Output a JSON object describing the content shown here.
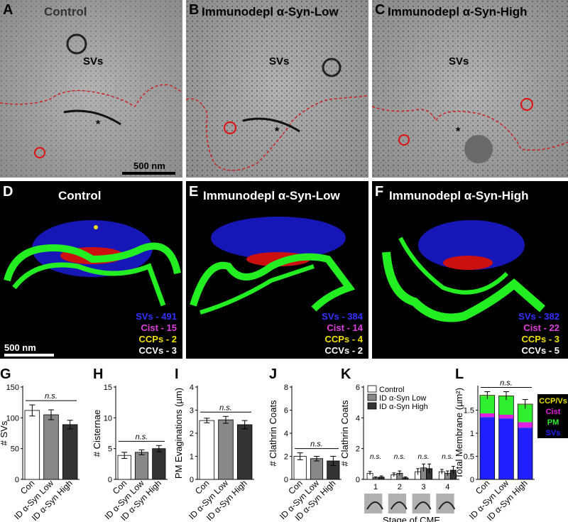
{
  "em_panels": [
    {
      "letter": "A",
      "title": "Control",
      "sv_label": "SVs",
      "scale": "500 nm"
    },
    {
      "letter": "B",
      "title": "Immunodepl α-Syn-Low",
      "sv_label": "SVs"
    },
    {
      "letter": "C",
      "title": "Immunodepl α-Syn-High",
      "sv_label": "SVs"
    }
  ],
  "recon_panels": [
    {
      "letter": "D",
      "title": "Control",
      "scale": "500 nm",
      "counts": [
        {
          "text": "SVs - 491",
          "color": "#3232ff"
        },
        {
          "text": "Cist - 15",
          "color": "#e040e0"
        },
        {
          "text": "CCPs - 2",
          "color": "#f0e000"
        },
        {
          "text": "CCVs - 3",
          "color": "#ffffff"
        }
      ]
    },
    {
      "letter": "E",
      "title": "Immunodepl α-Syn-Low",
      "counts": [
        {
          "text": "SVs - 384",
          "color": "#3232ff"
        },
        {
          "text": "Cist - 14",
          "color": "#e040e0"
        },
        {
          "text": "CCPs - 4",
          "color": "#f0e000"
        },
        {
          "text": "CCVs - 2",
          "color": "#ffffff"
        }
      ]
    },
    {
      "letter": "F",
      "title": "Immunodepl α-Syn-High",
      "counts": [
        {
          "text": "SVs - 382",
          "color": "#3232ff"
        },
        {
          "text": "Cist - 22",
          "color": "#e040e0"
        },
        {
          "text": "CCPs - 3",
          "color": "#f0e000"
        },
        {
          "text": "CCVs - 5",
          "color": "#ffffff"
        }
      ]
    }
  ],
  "groups": [
    "Con",
    "ID α-Syn Low",
    "ID α-Syn High"
  ],
  "group_colors": [
    "#ffffff",
    "#888888",
    "#333333"
  ],
  "ns_label": "n.s.",
  "chart_data": [
    {
      "panel": "G",
      "type": "bar",
      "ylabel": "# SVs",
      "ylim": [
        0,
        150
      ],
      "yticks": [
        0,
        50,
        100,
        150
      ],
      "categories": [
        "Con",
        "ID α-Syn Low",
        "ID α-Syn High"
      ],
      "values": [
        112,
        105,
        89
      ],
      "errors": [
        9,
        8,
        7
      ]
    },
    {
      "panel": "H",
      "type": "bar",
      "ylabel": "# Cisternae",
      "ylim": [
        0,
        15
      ],
      "yticks": [
        0,
        5,
        10,
        15
      ],
      "categories": [
        "Con",
        "ID α-Syn Low",
        "ID α-Syn High"
      ],
      "values": [
        3.9,
        4.4,
        5.0
      ],
      "errors": [
        0.5,
        0.4,
        0.5
      ]
    },
    {
      "panel": "I",
      "type": "bar",
      "ylabel": "PM Evaginations (µm)",
      "ylim": [
        0,
        4
      ],
      "yticks": [
        0,
        1,
        2,
        3,
        4
      ],
      "categories": [
        "Con",
        "ID α-Syn Low",
        "ID α-Syn High"
      ],
      "values": [
        2.55,
        2.58,
        2.37
      ],
      "errors": [
        0.1,
        0.15,
        0.18
      ]
    },
    {
      "panel": "J",
      "type": "bar",
      "ylabel": "# Clathrin Coats",
      "ylim": [
        0,
        8
      ],
      "yticks": [
        0,
        2,
        4,
        6,
        8
      ],
      "categories": [
        "Con",
        "ID α-Syn Low",
        "ID α-Syn High"
      ],
      "values": [
        2.0,
        1.8,
        1.6
      ],
      "errors": [
        0.3,
        0.2,
        0.4
      ]
    },
    {
      "panel": "K",
      "type": "bar",
      "ylabel": "# Clathrin Coats",
      "xlabel": "Stage of CME",
      "ylim": [
        0,
        6
      ],
      "yticks": [
        0,
        2,
        4,
        6
      ],
      "categories": [
        "1",
        "2",
        "3",
        "4"
      ],
      "legend": [
        "Control",
        "ID α-Syn Low",
        "ID α-Syn High"
      ],
      "series": [
        {
          "name": "Control",
          "values": [
            0.4,
            0.3,
            0.5,
            0.5
          ],
          "errors": [
            0.12,
            0.12,
            0.2,
            0.15
          ]
        },
        {
          "name": "ID α-Syn Low",
          "values": [
            0.1,
            0.4,
            0.75,
            0.4
          ],
          "errors": [
            0.06,
            0.15,
            0.25,
            0.15
          ]
        },
        {
          "name": "ID α-Syn High",
          "values": [
            0.15,
            0.1,
            0.7,
            0.6
          ],
          "errors": [
            0.08,
            0.06,
            0.3,
            0.25
          ]
        }
      ]
    },
    {
      "panel": "L",
      "type": "bar",
      "stacked": true,
      "ylabel": "Total Membrane (µm²)",
      "ylim": [
        0,
        2
      ],
      "yticks": [
        0,
        0.5,
        1,
        1.5
      ],
      "categories": [
        "Con",
        "ID α-Syn Low",
        "ID α-Syn High"
      ],
      "series": [
        {
          "name": "SVs",
          "color": "#2020ff",
          "values": [
            1.35,
            1.32,
            1.12
          ]
        },
        {
          "name": "Cist",
          "color": "#e020e0",
          "values": [
            0.08,
            0.08,
            0.12
          ]
        },
        {
          "name": "PM",
          "color": "#30ee30",
          "values": [
            0.38,
            0.4,
            0.38
          ]
        },
        {
          "name": "CCP/Vs",
          "color": "#e8e000",
          "values": [
            0.01,
            0.01,
            0.01
          ]
        }
      ],
      "total_errors": [
        0.08,
        0.09,
        0.1
      ]
    }
  ]
}
